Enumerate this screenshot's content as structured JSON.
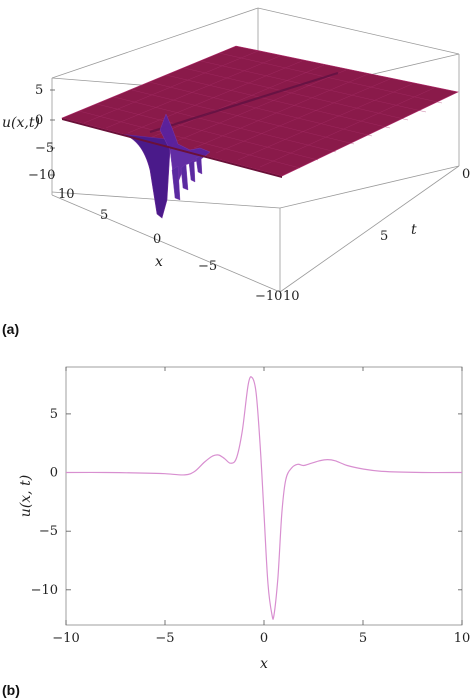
{
  "panels": [
    {
      "id": "a",
      "label": "(a)"
    },
    {
      "id": "b",
      "label": "(b)"
    }
  ],
  "chart_data": [
    {
      "type": "surface",
      "panel": "(a)",
      "xlabel": "x",
      "ylabel": "t",
      "zlabel": "u(x,t)",
      "x_ticks": [
        "10",
        "5",
        "0",
        "−5",
        "−10"
      ],
      "t_ticks": [
        "0",
        "5",
        "10"
      ],
      "z_ticks": [
        "5",
        "0",
        "−5",
        "−10"
      ],
      "xlim": [
        -10,
        10
      ],
      "tlim": [
        0,
        10
      ],
      "zlim": [
        -12,
        8
      ],
      "colors": {
        "surface": "#8a1a4a",
        "surface_dark": "#4a1a8a",
        "mesh": "#b02a6a"
      }
    },
    {
      "type": "line",
      "panel": "(b)",
      "xlabel": "x",
      "ylabel": "u(x, t)",
      "xlim": [
        -10,
        10
      ],
      "ylim": [
        -13,
        9
      ],
      "x_ticks": [
        {
          "value": -10,
          "label": "−10"
        },
        {
          "value": -5,
          "label": "−5"
        },
        {
          "value": 0,
          "label": "0"
        },
        {
          "value": 5,
          "label": "5"
        },
        {
          "value": 10,
          "label": "10"
        }
      ],
      "y_ticks": [
        {
          "value": 5,
          "label": "5"
        },
        {
          "value": 0,
          "label": "0"
        },
        {
          "value": -5,
          "label": "−5"
        },
        {
          "value": -10,
          "label": "−10"
        }
      ],
      "line_color": "#d88fd0",
      "x": [
        -10,
        -8,
        -6,
        -5,
        -4,
        -3.5,
        -3,
        -2.6,
        -2.3,
        -2.0,
        -1.7,
        -1.4,
        -1.1,
        -0.8,
        -0.6,
        -0.4,
        -0.2,
        0.0,
        0.2,
        0.4,
        0.5,
        0.7,
        0.9,
        1.1,
        1.4,
        1.7,
        2.0,
        2.4,
        2.8,
        3.2,
        3.6,
        4.2,
        5,
        6,
        8,
        10
      ],
      "y": [
        0,
        0,
        -0.05,
        -0.1,
        -0.2,
        0.1,
        0.9,
        1.4,
        1.5,
        1.2,
        0.8,
        1.2,
        3.5,
        7.5,
        8.1,
        6.8,
        2.5,
        -3.5,
        -9.5,
        -12.1,
        -12.2,
        -9.0,
        -3.5,
        -0.6,
        0.4,
        0.7,
        0.6,
        0.8,
        1.0,
        1.1,
        1.0,
        0.6,
        0.3,
        0.1,
        0,
        0
      ]
    }
  ]
}
